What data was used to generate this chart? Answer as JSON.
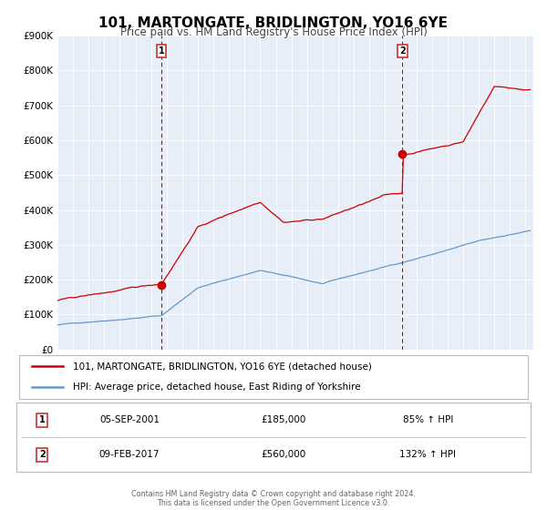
{
  "title": "101, MARTONGATE, BRIDLINGTON, YO16 6YE",
  "subtitle": "Price paid vs. HM Land Registry's House Price Index (HPI)",
  "bg_color": "#e8eef8",
  "red_line_label": "101, MARTONGATE, BRIDLINGTON, YO16 6YE (detached house)",
  "blue_line_label": "HPI: Average price, detached house, East Riding of Yorkshire",
  "marker1_date": 2001.67,
  "marker1_price": 185000,
  "marker1_date_str": "05-SEP-2001",
  "marker1_pct": "85% ↑ HPI",
  "marker2_date": 2017.1,
  "marker2_price": 560000,
  "marker2_date_str": "09-FEB-2017",
  "marker2_pct": "132% ↑ HPI",
  "ylim": [
    0,
    900000
  ],
  "xlim_start": 1995.0,
  "xlim_end": 2025.5,
  "footer": "Contains HM Land Registry data © Crown copyright and database right 2024.\nThis data is licensed under the Open Government Licence v3.0.",
  "red_color": "#cc0000",
  "blue_color": "#6699cc",
  "dashed_color": "#cc0000",
  "grid_color": "#ffffff",
  "border_color": "#bbbbbb"
}
